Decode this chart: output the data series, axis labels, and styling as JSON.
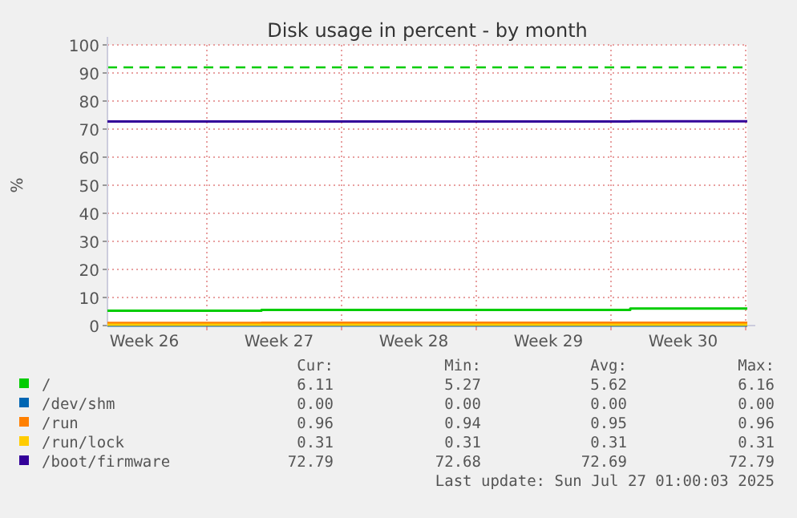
{
  "chart_data": {
    "type": "step",
    "title": "Disk usage in percent - by month",
    "ylabel": "%",
    "x": [
      "2025-06-24T20:00",
      "2025-07-02T20:00",
      "2025-07-22",
      "2025-07-28T02:00"
    ],
    "xlim": [
      "2025-06-24T20:00",
      "2025-07-28T02:00"
    ],
    "xticks": [
      {
        "value": "2025-06-26T18:00",
        "label": "Week 26"
      },
      {
        "value": "2025-06-30",
        "label": null
      },
      {
        "value": "2025-07-03T18:00",
        "label": "Week 27"
      },
      {
        "value": "2025-07-07",
        "label": null
      },
      {
        "value": "2025-07-10T18:00",
        "label": "Week 28"
      },
      {
        "value": "2025-07-14",
        "label": null
      },
      {
        "value": "2025-07-17T18:00",
        "label": "Week 29"
      },
      {
        "value": "2025-07-21",
        "label": null
      },
      {
        "value": "2025-07-24T18:00",
        "label": "Week 30"
      },
      {
        "value": "2025-07-28",
        "label": null
      }
    ],
    "ylim": [
      0,
      100
    ],
    "yticks": [
      0,
      10,
      20,
      30,
      40,
      50,
      60,
      70,
      80,
      90,
      100
    ],
    "grid": true,
    "legend": "bottom",
    "line_style": "solid",
    "marker": "none",
    "series": [
      {
        "name": "/",
        "color": "#00cc00",
        "values": [
          5.3,
          5.6,
          6.1,
          6.1
        ]
      },
      {
        "name": "/dev/shm",
        "color": "#0066b3",
        "values": [
          0,
          0,
          0,
          0
        ]
      },
      {
        "name": "/run",
        "color": "#ff8000",
        "values": [
          0.9,
          1.0,
          1.0,
          1.0
        ]
      },
      {
        "name": "/run/lock",
        "color": "#ffcc00",
        "values": [
          0.3,
          0.3,
          0.3,
          0.3
        ]
      },
      {
        "name": "/boot/firmware",
        "color": "#330099",
        "values": [
          72.7,
          72.7,
          72.8,
          72.8
        ]
      }
    ],
    "ref_lines": [
      {
        "axis": "y",
        "value": 92,
        "label": null,
        "color": "#00cc00",
        "line_style": "dashed"
      }
    ],
    "annotations": [
      "Cur:",
      "Min:",
      "Avg:",
      "Max:",
      "6.11",
      "5.27",
      "5.62",
      "6.16",
      "0.00",
      "0.00",
      "0.00",
      "0.00",
      "0.96",
      "0.94",
      "0.95",
      "0.96",
      "0.31",
      "0.31",
      "0.31",
      "0.31",
      "72.79",
      "72.68",
      "72.69",
      "72.79",
      "Last update: Sun Jul 27 01:00:03 2025"
    ]
  }
}
